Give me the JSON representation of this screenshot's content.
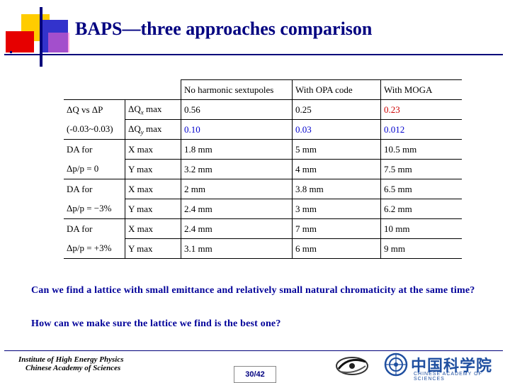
{
  "slide": {
    "title": "BAPS—three approaches comparison"
  },
  "table": {
    "headers": [
      "No harmonic sextupoles",
      "With OPA code",
      "With MOGA"
    ],
    "q_label1": "ΔQ vs ΔP",
    "q_label2": "(-0.03~0.03)",
    "qx_label": "ΔQ",
    "qx_sub": "x",
    "qx_suffix": " max",
    "qy_label": "ΔQ",
    "qy_sub": "y",
    "qy_suffix": " max",
    "qx_values": [
      "0.56",
      "0.25",
      "0.23"
    ],
    "qy_values": [
      "0.10",
      "0.03",
      "0.012"
    ],
    "groups": [
      {
        "label1": "DA  for",
        "label2": "Δp/p = 0",
        "rows": [
          {
            "plane": "X max",
            "values": [
              "1.8 mm",
              "5 mm",
              "10.5 mm"
            ]
          },
          {
            "plane": "Y max",
            "values": [
              "3.2 mm",
              "4 mm",
              "7.5 mm"
            ]
          }
        ]
      },
      {
        "label1": "DA  for",
        "label2": "Δp/p = −3%",
        "rows": [
          {
            "plane": "X max",
            "values": [
              "2 mm",
              "3.8 mm",
              "6.5 mm"
            ]
          },
          {
            "plane": "Y max",
            "values": [
              "2.4 mm",
              "3 mm",
              "6.2 mm"
            ]
          }
        ]
      },
      {
        "label1": "DA  for",
        "label2": "Δp/p = +3%",
        "rows": [
          {
            "plane": "X max",
            "values": [
              "2.4 mm",
              "7 mm",
              "10 mm"
            ]
          },
          {
            "plane": "Y max",
            "values": [
              "3.1 mm",
              "6 mm",
              "9 mm"
            ]
          }
        ]
      }
    ]
  },
  "body": {
    "question1": "Can we find a lattice with small emittance and relatively small natural chromaticity at the same time?",
    "question2": "How can we make sure the lattice we find is the best one?"
  },
  "footer": {
    "institute_line1": "Institute of High Energy Physics",
    "institute_line2": "Chinese Academy of Sciences",
    "page_number": "30/42",
    "cas_chinese": "中国科学院",
    "cas_english": "CHINESE ACADEMY OF SCIENCES"
  },
  "colors": {
    "title": "#000080",
    "question_text": "#000099",
    "qy_values": "#0000cc",
    "moga_qx": "#cc0000"
  },
  "icons": [
    "ihep-swirl-logo-icon",
    "cas-emblem-icon"
  ]
}
